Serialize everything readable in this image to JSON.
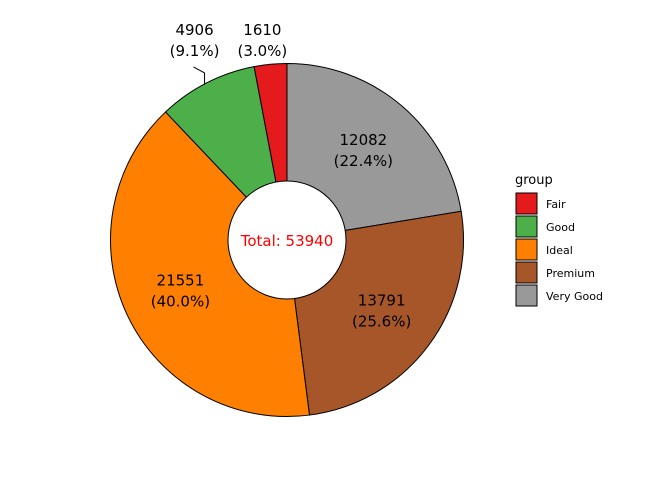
{
  "chart_data": {
    "type": "pie",
    "variant": "donut",
    "categories": [
      "Fair",
      "Good",
      "Ideal",
      "Premium",
      "Very Good"
    ],
    "values": [
      1610,
      4906,
      21551,
      13791,
      12082
    ],
    "percent_labels": [
      "(3.0%)",
      "(9.1%)",
      "(40.0%)",
      "(25.6%)",
      "(22.4%)"
    ],
    "value_labels": [
      "1610",
      "4906",
      "21551",
      "13791",
      "12082"
    ],
    "colors": [
      "#e41a1c",
      "#4daf4a",
      "#ff7f00",
      "#a65628",
      "#999999"
    ],
    "center_label": "Total: 53940",
    "center_label_color": "#ff0000",
    "legend_title": "group",
    "legend_position": "right",
    "start": "top, clockwise, Very Good first",
    "grid": false
  }
}
